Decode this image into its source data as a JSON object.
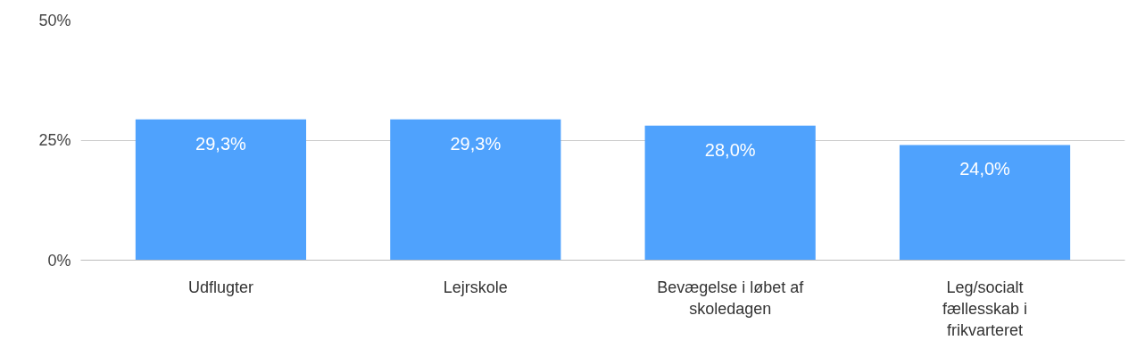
{
  "chart_data": {
    "type": "bar",
    "categories": [
      "Udflugter",
      "Lejrskole",
      "Bevægelse i løbet af skoledagen",
      "Leg/socialt fællesskab i frikvarteret"
    ],
    "values": [
      29.3,
      29.3,
      28.0,
      24.0
    ],
    "value_labels": [
      "29,3%",
      "29,3%",
      "28,0%",
      "24,0%"
    ],
    "color": "#4fa2fd",
    "ylim": [
      0,
      50
    ],
    "yticks": [
      {
        "value": 0,
        "label": "0%"
      },
      {
        "value": 25,
        "label": "25%"
      },
      {
        "value": 50,
        "label": "50%"
      }
    ],
    "grid": "y"
  }
}
